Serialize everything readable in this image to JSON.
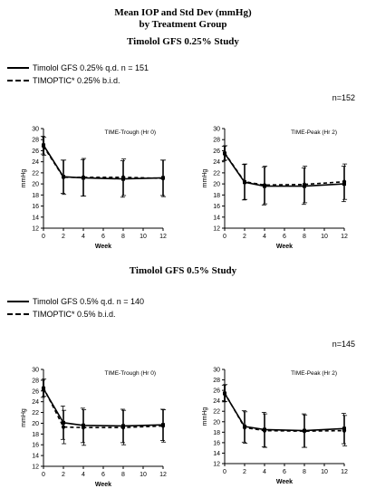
{
  "header": {
    "title_line1": "Mean IOP and Std Dev (mmHg)",
    "title_line2": "by Treatment Group"
  },
  "studies": [
    {
      "title": "Timolol GFS 0.25% Study",
      "legend": [
        "Timolol GFS 0.25% q.d. n = 151",
        "TIMOPTIC* 0.25% b.i.d."
      ],
      "n_label": "n=152"
    },
    {
      "title": "Timolol GFS 0.5% Study",
      "legend": [
        "Timolol GFS 0.5% q.d. n = 140",
        "TIMOPTIC* 0.5% b.i.d."
      ],
      "n_label": "n=145"
    }
  ],
  "chart_data": [
    {
      "type": "line",
      "subtitle": "TIME-Trough (Hr 0)",
      "xlabel": "Week",
      "ylabel": "mmHg",
      "xlim": [
        0,
        12
      ],
      "ylim": [
        12,
        30
      ],
      "xticks": [
        0,
        2,
        4,
        6,
        8,
        10,
        12
      ],
      "yticks": [
        12,
        14,
        16,
        18,
        20,
        22,
        24,
        26,
        28,
        30
      ],
      "x": [
        0,
        2,
        4,
        8,
        12
      ],
      "series": [
        {
          "style": "solid",
          "values": [
            27.0,
            21.3,
            21.1,
            20.9,
            21.1
          ],
          "sd": [
            1.6,
            3.0,
            3.3,
            3.3,
            3.2
          ]
        },
        {
          "style": "dashed",
          "values": [
            26.8,
            21.2,
            21.2,
            21.2,
            21.0
          ],
          "sd": [
            1.6,
            3.1,
            3.4,
            3.3,
            3.3
          ]
        }
      ]
    },
    {
      "type": "line",
      "subtitle": "TIME-Peak (Hr 2)",
      "xlabel": "Week",
      "ylabel": "mmHg",
      "xlim": [
        0,
        12
      ],
      "ylim": [
        12,
        30
      ],
      "xticks": [
        0,
        2,
        4,
        6,
        8,
        10,
        12
      ],
      "yticks": [
        12,
        14,
        16,
        18,
        20,
        22,
        24,
        26,
        28,
        30
      ],
      "x": [
        0,
        2,
        4,
        8,
        12
      ],
      "series": [
        {
          "style": "solid",
          "values": [
            25.5,
            20.3,
            19.6,
            19.6,
            20.0
          ],
          "sd": [
            1.3,
            3.2,
            3.4,
            3.3,
            3.2
          ]
        },
        {
          "style": "dashed",
          "values": [
            25.6,
            20.4,
            19.8,
            19.9,
            20.4
          ],
          "sd": [
            1.3,
            3.2,
            3.4,
            3.3,
            3.2
          ]
        }
      ]
    },
    {
      "type": "line",
      "subtitle": "TIME-Trough (Hr 0)",
      "xlabel": "Week",
      "ylabel": "mmHg",
      "xlim": [
        0,
        12
      ],
      "ylim": [
        12,
        30
      ],
      "xticks": [
        0,
        2,
        4,
        6,
        8,
        10,
        12
      ],
      "yticks": [
        12,
        14,
        16,
        18,
        20,
        22,
        24,
        26,
        28,
        30
      ],
      "x": [
        0,
        2,
        4,
        8,
        12
      ],
      "series": [
        {
          "style": "solid",
          "values": [
            26.4,
            20.1,
            19.6,
            19.5,
            19.7
          ],
          "sd": [
            1.6,
            3.1,
            3.2,
            3.1,
            2.9
          ]
        },
        {
          "style": "dashed",
          "values": [
            26.6,
            19.3,
            19.2,
            19.2,
            19.5
          ],
          "sd": [
            1.6,
            3.1,
            3.3,
            3.2,
            3.0
          ]
        }
      ]
    },
    {
      "type": "line",
      "subtitle": "TIME-Peak (Hr 2)",
      "xlabel": "Week",
      "ylabel": "mmHg",
      "xlim": [
        0,
        12
      ],
      "ylim": [
        12,
        30
      ],
      "xticks": [
        0,
        2,
        4,
        6,
        8,
        10,
        12
      ],
      "yticks": [
        12,
        14,
        16,
        18,
        20,
        22,
        24,
        26,
        28,
        30
      ],
      "x": [
        0,
        2,
        4,
        8,
        12
      ],
      "series": [
        {
          "style": "solid",
          "values": [
            25.4,
            19.1,
            18.5,
            18.3,
            18.7
          ],
          "sd": [
            1.6,
            3.0,
            3.3,
            3.2,
            2.9
          ]
        },
        {
          "style": "dashed",
          "values": [
            25.5,
            18.9,
            18.3,
            18.2,
            18.3
          ],
          "sd": [
            1.6,
            3.0,
            3.2,
            3.1,
            2.9
          ]
        }
      ]
    }
  ]
}
